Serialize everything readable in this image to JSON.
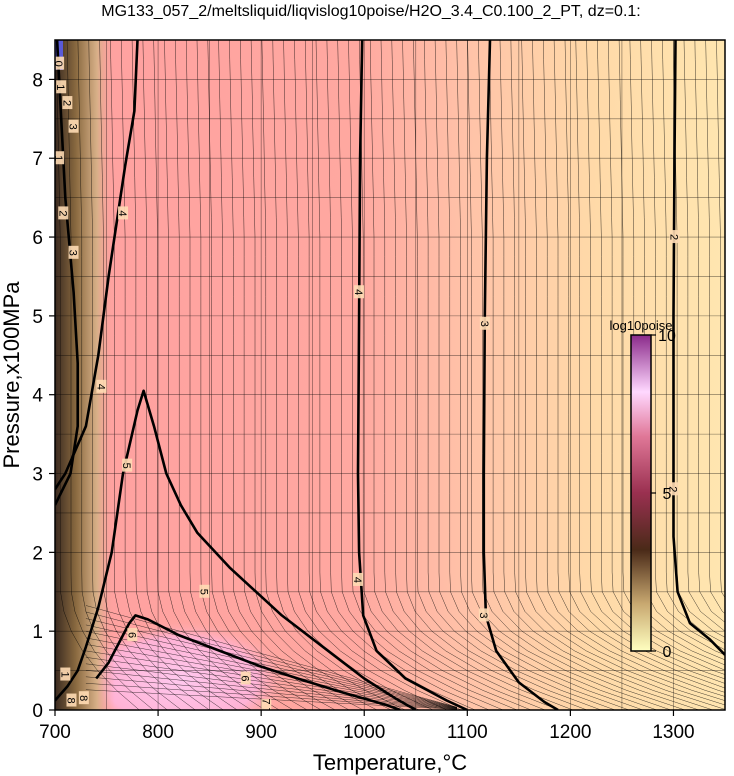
{
  "chart_data": {
    "type": "heatmap",
    "title": "MG133_057_2/meltsliquid/liqvislog10poise/H2O_3.4_C0.100_2_PT, dz=0.1:",
    "xlabel": "Temperature,°C",
    "ylabel": "Pressure,x100MPa",
    "xlim": [
      700,
      1350
    ],
    "ylim": [
      0,
      8.5
    ],
    "x_ticks": [
      700,
      800,
      900,
      1000,
      1100,
      1200,
      1300
    ],
    "y_ticks": [
      0,
      1,
      2,
      3,
      4,
      5,
      6,
      7,
      8
    ],
    "grid": true,
    "colorbar": {
      "label": "log10poise",
      "range": [
        0,
        10
      ],
      "ticks": [
        0,
        5,
        10
      ],
      "colors": [
        "#ffffc0",
        "#4a2a18",
        "#ffd8ff",
        "#8a2a8a"
      ]
    },
    "field_colors": {
      "low_viscosity": "#ffe3a8",
      "mid_viscosity": "#ffa8a0",
      "high_viscosity": "#ffb6da"
    },
    "major_contours": [
      {
        "level": 2,
        "points": [
          [
            1302,
            8.5
          ],
          [
            1301,
            7.0
          ],
          [
            1300,
            5.0
          ],
          [
            1300,
            3.0
          ],
          [
            1300,
            2.2
          ],
          [
            1304,
            1.5
          ],
          [
            1316,
            1.1
          ],
          [
            1335,
            0.9
          ],
          [
            1350,
            0.7
          ]
        ]
      },
      {
        "level": 3,
        "points": [
          [
            1122,
            8.5
          ],
          [
            1119,
            7.0
          ],
          [
            1117,
            5.0
          ],
          [
            1116,
            3.0
          ],
          [
            1116,
            2.0
          ],
          [
            1118,
            1.2
          ],
          [
            1128,
            0.75
          ],
          [
            1150,
            0.35
          ],
          [
            1175,
            0.1
          ],
          [
            1188,
            0
          ]
        ]
      },
      {
        "level": 4,
        "points": [
          [
            998,
            8.5
          ],
          [
            996,
            7.0
          ],
          [
            995,
            5.0
          ],
          [
            994,
            3.0
          ],
          [
            995,
            2.0
          ],
          [
            999,
            1.2
          ],
          [
            1012,
            0.75
          ],
          [
            1040,
            0.4
          ],
          [
            1080,
            0.12
          ],
          [
            1100,
            0
          ]
        ]
      },
      {
        "level": 4,
        "points": [
          [
            780,
            8.5
          ],
          [
            777,
            7.6
          ],
          [
            768,
            6.9
          ],
          [
            752,
            5.5
          ],
          [
            742,
            4.5
          ],
          [
            730,
            3.6
          ],
          [
            710,
            3.0
          ],
          [
            700,
            2.8
          ]
        ]
      },
      {
        "level": 5,
        "points": [
          [
            702,
            8.5
          ],
          [
            706,
            7.5
          ],
          [
            710,
            6.5
          ],
          [
            718,
            5.3
          ],
          [
            722,
            4.4
          ],
          [
            722,
            3.6
          ],
          [
            715,
            3.0
          ],
          [
            700,
            2.6
          ]
        ]
      },
      {
        "level": 5,
        "points": [
          [
            700,
            0.12
          ],
          [
            712,
            0.3
          ],
          [
            722,
            0.5
          ],
          [
            730,
            0.8
          ],
          [
            742,
            1.3
          ],
          [
            755,
            2.0
          ],
          [
            766,
            3.0
          ],
          [
            780,
            3.8
          ],
          [
            786,
            4.05
          ],
          [
            796,
            3.6
          ],
          [
            808,
            3.0
          ],
          [
            822,
            2.6
          ],
          [
            838,
            2.25
          ],
          [
            870,
            1.8
          ],
          [
            920,
            1.2
          ],
          [
            970,
            0.7
          ],
          [
            1000,
            0.4
          ],
          [
            1030,
            0.15
          ],
          [
            1050,
            0
          ]
        ]
      },
      {
        "level": 6,
        "points": [
          [
            740,
            0.4
          ],
          [
            752,
            0.6
          ],
          [
            762,
            0.85
          ],
          [
            772,
            1.1
          ],
          [
            778,
            1.2
          ],
          [
            790,
            1.15
          ],
          [
            820,
            0.95
          ],
          [
            860,
            0.75
          ],
          [
            900,
            0.55
          ],
          [
            940,
            0.38
          ],
          [
            980,
            0.22
          ],
          [
            1020,
            0.07
          ],
          [
            1035,
            0
          ]
        ]
      }
    ],
    "contour_labels": [
      {
        "text": "2",
        "x": 1301,
        "y": 6.0
      },
      {
        "text": "2",
        "x": 1300,
        "y": 2.8
      },
      {
        "text": "3",
        "x": 1117,
        "y": 4.9
      },
      {
        "text": "3",
        "x": 1116,
        "y": 1.2
      },
      {
        "text": "4",
        "x": 995,
        "y": 5.3
      },
      {
        "text": "4",
        "x": 994,
        "y": 1.65
      },
      {
        "text": "4",
        "x": 766,
        "y": 6.3
      },
      {
        "text": "4",
        "x": 745,
        "y": 4.1
      },
      {
        "text": "5",
        "x": 770,
        "y": 3.1
      },
      {
        "text": "5",
        "x": 845,
        "y": 1.5
      },
      {
        "text": "6",
        "x": 775,
        "y": 0.95
      },
      {
        "text": "6",
        "x": 885,
        "y": 0.4
      },
      {
        "text": "3",
        "x": 718,
        "y": 7.4
      },
      {
        "text": "3",
        "x": 718,
        "y": 5.8
      },
      {
        "text": "2",
        "x": 712,
        "y": 7.7
      },
      {
        "text": "2",
        "x": 708,
        "y": 6.3
      },
      {
        "text": "0",
        "x": 704,
        "y": 8.2
      },
      {
        "text": "1",
        "x": 706,
        "y": 7.9
      },
      {
        "text": "1",
        "x": 704,
        "y": 7.0
      },
      {
        "text": "1",
        "x": 710,
        "y": 0.45
      },
      {
        "text": "8",
        "x": 716,
        "y": 0.12
      },
      {
        "text": "8",
        "x": 728,
        "y": 0.15
      },
      {
        "text": "7 7",
        "x": 905,
        "y": 0.05
      }
    ]
  }
}
